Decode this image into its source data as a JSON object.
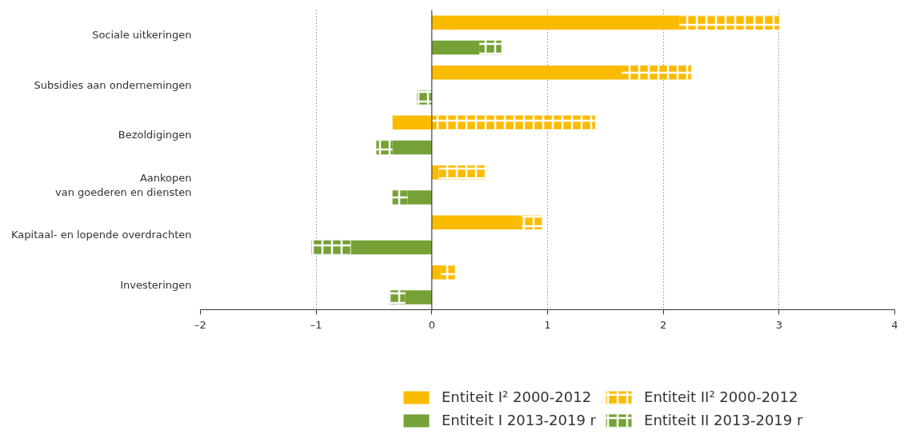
{
  "chart_data": {
    "type": "bar",
    "orientation": "horizontal",
    "stacked": true,
    "categories": [
      "Sociale uitkeringen",
      null,
      "Subsidies aan ondernemingen",
      null,
      "Bezoldigingen",
      null,
      "Aankopen\nvan goederen en diensten",
      null,
      "Kapitaal- en lopende overdrachten",
      null,
      "Investeringen",
      null
    ],
    "series": [
      {
        "name": "Entiteit I² 2000-2012",
        "color": "#fbbb00",
        "values": [
          2.14,
          null,
          1.64,
          null,
          -0.34,
          null,
          0.06,
          null,
          0.78,
          null,
          0.08,
          null
        ]
      },
      {
        "name": "Entiteit II² 2000-2012",
        "color": "#fbbb00",
        "values": [
          0.86,
          null,
          0.6,
          null,
          1.41,
          null,
          0.41,
          null,
          0.17,
          null,
          0.12,
          null
        ]
      },
      {
        "name": "Entiteit I 2013-2019 r",
        "color": "#76a136",
        "values": [
          null,
          0.41,
          null,
          null,
          null,
          -0.34,
          null,
          -0.21,
          null,
          -0.7,
          null,
          -0.23
        ]
      },
      {
        "name": "Entiteit II 2013-2019 r",
        "color": "#76a136",
        "values": [
          null,
          0.19,
          null,
          -0.13,
          null,
          -0.14,
          null,
          -0.13,
          null,
          -0.34,
          null,
          -0.14
        ]
      }
    ],
    "xlim": [
      -2,
      4
    ],
    "xticks": [
      {
        "value": -2,
        "label": "–2"
      },
      {
        "value": -1,
        "label": "–1"
      },
      0,
      1,
      2,
      3,
      4
    ],
    "grid": "x",
    "legend": "bottom"
  }
}
